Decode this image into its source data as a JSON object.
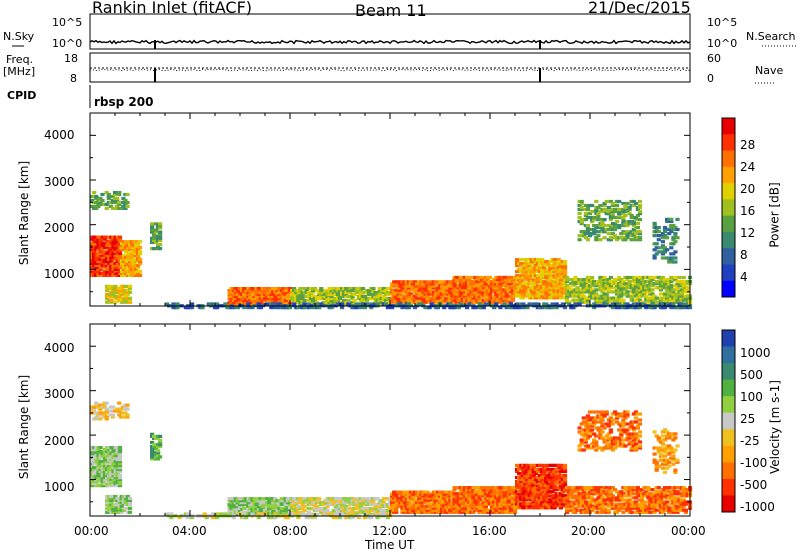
{
  "header": {
    "station": "Rankin Inlet (fitACF)",
    "beam": "Beam 11",
    "date": "21/Dec/2015"
  },
  "status_panel": {
    "nsky_label": "N.Sky",
    "nsearch_label": "N.Search",
    "nsky_ticks": [
      "10^5",
      "10^0"
    ],
    "nsearch_ticks": [
      "10^5",
      "10^0"
    ],
    "freq_label": "Freq.",
    "freq_units": "[MHz]",
    "freq_ticks": [
      "18",
      "8"
    ],
    "nave_label": "Nave",
    "nave_ticks": [
      "60",
      "0"
    ],
    "cpid_label": "CPID",
    "cpid_value": "rbsp 200"
  },
  "chart_data": [
    {
      "type": "heatmap",
      "title": "",
      "parameter": "Power",
      "colorbar_label": "Power [dB]",
      "xlabel": "",
      "ylabel": "Slant Range [km]",
      "xlim_hours": [
        0,
        24
      ],
      "ylim_km": [
        180,
        4500
      ],
      "yticks": [
        1000,
        2000,
        3000,
        4000
      ],
      "colorbar_ticks": [
        "28",
        "24",
        "20",
        "16",
        "12",
        "8",
        "4"
      ],
      "colorscale": [
        "#0000ff",
        "#2040c0",
        "#3060a0",
        "#3a8a70",
        "#5aa040",
        "#a0c020",
        "#e0d000",
        "#ffa000",
        "#ff7000",
        "#ff3000",
        "#e80000"
      ]
    },
    {
      "type": "heatmap",
      "title": "",
      "parameter": "Velocity",
      "colorbar_label": "Velocity [m s-1]",
      "xlabel": "Time UT",
      "ylabel": "Slant Range [km]",
      "xlim_hours": [
        0,
        24
      ],
      "ylim_km": [
        180,
        4500
      ],
      "yticks": [
        1000,
        2000,
        3000,
        4000
      ],
      "xticks": [
        "00:00",
        "04:00",
        "08:00",
        "12:00",
        "16:00",
        "20:00",
        "00:00"
      ],
      "colorbar_ticks": [
        "1000",
        "500",
        "100",
        "25",
        "-25",
        "-100",
        "-500",
        "-1000"
      ],
      "colorscale": [
        "#2040b0",
        "#3070a0",
        "#3a8a70",
        "#50b040",
        "#90d040",
        "#c8c8c8",
        "#f0c020",
        "#ffa000",
        "#ff7000",
        "#ff3000",
        "#e80000"
      ]
    }
  ],
  "axis_text": {
    "xlabel": "Time UT",
    "ylabel": "Slant Range [km]",
    "xticks": [
      "00:00",
      "04:00",
      "08:00",
      "12:00",
      "16:00",
      "20:00",
      "00:00"
    ],
    "yticks": [
      "1000",
      "2000",
      "3000",
      "4000"
    ]
  },
  "colors": {
    "frame": "#000000",
    "background": "#ffffff"
  }
}
